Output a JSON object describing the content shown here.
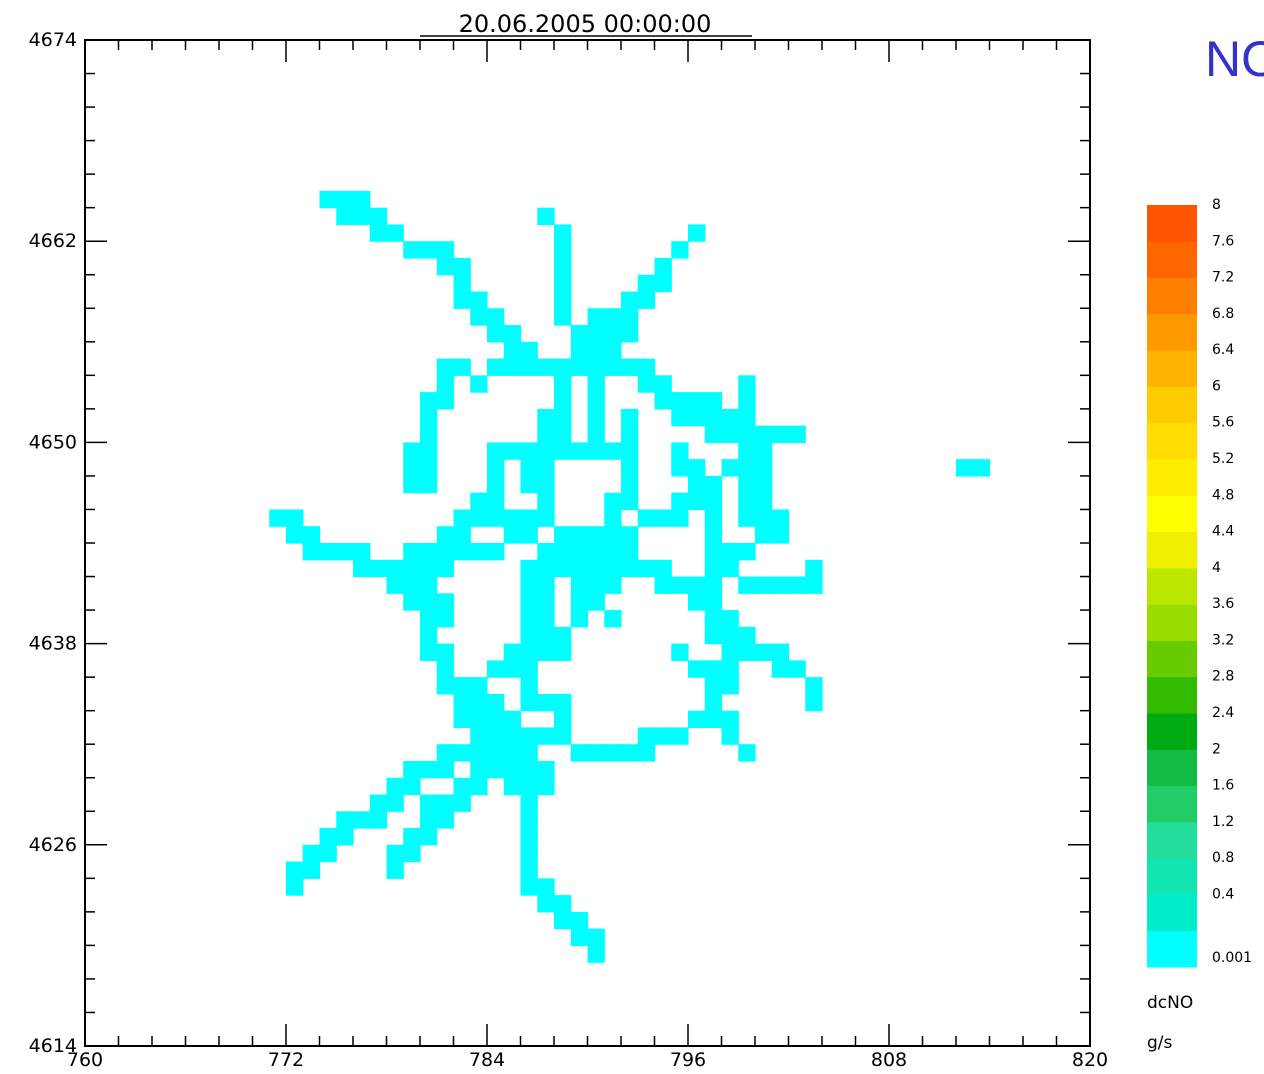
{
  "heading": "NO",
  "chart_data": {
    "type": "heatmap",
    "title": "20.06.2005   00:00:00",
    "xlim": [
      760,
      820
    ],
    "ylim": [
      4614,
      4674
    ],
    "x_ticks": [
      760,
      772,
      784,
      796,
      808,
      820
    ],
    "y_ticks": [
      4614,
      4626,
      4638,
      4650,
      4662,
      4674
    ],
    "colorbar": {
      "variable": "dcNO",
      "unit": "g/s",
      "levels": [
        "0.001",
        "0.4",
        "0.8",
        "1.2",
        "1.6",
        "2",
        "2.4",
        "2.8",
        "3.2",
        "3.6",
        "4",
        "4.4",
        "4.8",
        "5.2",
        "5.6",
        "6",
        "6.4",
        "6.8",
        "7.2",
        "7.6",
        "8"
      ],
      "colors": [
        "#00ffff",
        "#00eecc",
        "#11e6b0",
        "#22dd99",
        "#22cc66",
        "#11bb44",
        "#00aa11",
        "#33bb00",
        "#66cc00",
        "#99dd00",
        "#bbe600",
        "#eef000",
        "#ffff00",
        "#ffee00",
        "#ffdd00",
        "#ffcc00",
        "#ffb300",
        "#ff9900",
        "#ff8000",
        "#ff6600",
        "#ff5500"
      ]
    },
    "grid_resolution_km": 1,
    "cell_color": "#00ffff",
    "cell_value_class": "0.001",
    "cells": [
      [
        774,
        4664
      ],
      [
        775,
        4664
      ],
      [
        776,
        4664
      ],
      [
        775,
        4663
      ],
      [
        776,
        4663
      ],
      [
        777,
        4663
      ],
      [
        787,
        4663
      ],
      [
        777,
        4662
      ],
      [
        778,
        4662
      ],
      [
        788,
        4662
      ],
      [
        796,
        4662
      ],
      [
        779,
        4661
      ],
      [
        780,
        4661
      ],
      [
        781,
        4661
      ],
      [
        788,
        4661
      ],
      [
        795,
        4661
      ],
      [
        781,
        4660
      ],
      [
        782,
        4660
      ],
      [
        788,
        4660
      ],
      [
        794,
        4660
      ],
      [
        782,
        4659
      ],
      [
        788,
        4659
      ],
      [
        793,
        4659
      ],
      [
        794,
        4659
      ],
      [
        782,
        4658
      ],
      [
        783,
        4658
      ],
      [
        788,
        4658
      ],
      [
        792,
        4658
      ],
      [
        793,
        4658
      ],
      [
        783,
        4657
      ],
      [
        784,
        4657
      ],
      [
        788,
        4657
      ],
      [
        790,
        4657
      ],
      [
        791,
        4657
      ],
      [
        792,
        4657
      ],
      [
        784,
        4656
      ],
      [
        785,
        4656
      ],
      [
        789,
        4656
      ],
      [
        790,
        4656
      ],
      [
        791,
        4656
      ],
      [
        792,
        4656
      ],
      [
        785,
        4655
      ],
      [
        786,
        4655
      ],
      [
        789,
        4655
      ],
      [
        790,
        4655
      ],
      [
        791,
        4655
      ],
      [
        781,
        4654
      ],
      [
        782,
        4654
      ],
      [
        784,
        4654
      ],
      [
        785,
        4654
      ],
      [
        786,
        4654
      ],
      [
        787,
        4654
      ],
      [
        788,
        4654
      ],
      [
        789,
        4654
      ],
      [
        790,
        4654
      ],
      [
        791,
        4654
      ],
      [
        792,
        4654
      ],
      [
        793,
        4654
      ],
      [
        781,
        4653
      ],
      [
        783,
        4653
      ],
      [
        788,
        4653
      ],
      [
        790,
        4653
      ],
      [
        793,
        4653
      ],
      [
        794,
        4653
      ],
      [
        799,
        4653
      ],
      [
        780,
        4652
      ],
      [
        781,
        4652
      ],
      [
        788,
        4652
      ],
      [
        790,
        4652
      ],
      [
        794,
        4652
      ],
      [
        795,
        4652
      ],
      [
        796,
        4652
      ],
      [
        797,
        4652
      ],
      [
        799,
        4652
      ],
      [
        780,
        4651
      ],
      [
        787,
        4651
      ],
      [
        788,
        4651
      ],
      [
        790,
        4651
      ],
      [
        792,
        4651
      ],
      [
        795,
        4651
      ],
      [
        796,
        4651
      ],
      [
        797,
        4651
      ],
      [
        798,
        4651
      ],
      [
        799,
        4651
      ],
      [
        780,
        4650
      ],
      [
        787,
        4650
      ],
      [
        788,
        4650
      ],
      [
        790,
        4650
      ],
      [
        792,
        4650
      ],
      [
        797,
        4650
      ],
      [
        798,
        4650
      ],
      [
        799,
        4650
      ],
      [
        800,
        4650
      ],
      [
        801,
        4650
      ],
      [
        802,
        4650
      ],
      [
        779,
        4649
      ],
      [
        780,
        4649
      ],
      [
        784,
        4649
      ],
      [
        785,
        4649
      ],
      [
        786,
        4649
      ],
      [
        787,
        4649
      ],
      [
        788,
        4649
      ],
      [
        789,
        4649
      ],
      [
        790,
        4649
      ],
      [
        791,
        4649
      ],
      [
        792,
        4649
      ],
      [
        795,
        4649
      ],
      [
        799,
        4649
      ],
      [
        800,
        4649
      ],
      [
        779,
        4648
      ],
      [
        780,
        4648
      ],
      [
        784,
        4648
      ],
      [
        786,
        4648
      ],
      [
        787,
        4648
      ],
      [
        792,
        4648
      ],
      [
        795,
        4648
      ],
      [
        796,
        4648
      ],
      [
        798,
        4648
      ],
      [
        799,
        4648
      ],
      [
        800,
        4648
      ],
      [
        812,
        4648
      ],
      [
        813,
        4648
      ],
      [
        779,
        4647
      ],
      [
        780,
        4647
      ],
      [
        784,
        4647
      ],
      [
        786,
        4647
      ],
      [
        787,
        4647
      ],
      [
        792,
        4647
      ],
      [
        796,
        4647
      ],
      [
        797,
        4647
      ],
      [
        799,
        4647
      ],
      [
        800,
        4647
      ],
      [
        783,
        4646
      ],
      [
        784,
        4646
      ],
      [
        787,
        4646
      ],
      [
        791,
        4646
      ],
      [
        792,
        4646
      ],
      [
        795,
        4646
      ],
      [
        796,
        4646
      ],
      [
        797,
        4646
      ],
      [
        799,
        4646
      ],
      [
        800,
        4646
      ],
      [
        771,
        4645
      ],
      [
        772,
        4645
      ],
      [
        782,
        4645
      ],
      [
        783,
        4645
      ],
      [
        784,
        4645
      ],
      [
        785,
        4645
      ],
      [
        786,
        4645
      ],
      [
        787,
        4645
      ],
      [
        791,
        4645
      ],
      [
        793,
        4645
      ],
      [
        794,
        4645
      ],
      [
        795,
        4645
      ],
      [
        797,
        4645
      ],
      [
        799,
        4645
      ],
      [
        800,
        4645
      ],
      [
        801,
        4645
      ],
      [
        772,
        4644
      ],
      [
        773,
        4644
      ],
      [
        781,
        4644
      ],
      [
        782,
        4644
      ],
      [
        785,
        4644
      ],
      [
        786,
        4644
      ],
      [
        788,
        4644
      ],
      [
        789,
        4644
      ],
      [
        790,
        4644
      ],
      [
        791,
        4644
      ],
      [
        792,
        4644
      ],
      [
        797,
        4644
      ],
      [
        800,
        4644
      ],
      [
        801,
        4644
      ],
      [
        773,
        4643
      ],
      [
        774,
        4643
      ],
      [
        775,
        4643
      ],
      [
        776,
        4643
      ],
      [
        779,
        4643
      ],
      [
        780,
        4643
      ],
      [
        781,
        4643
      ],
      [
        782,
        4643
      ],
      [
        783,
        4643
      ],
      [
        784,
        4643
      ],
      [
        787,
        4643
      ],
      [
        788,
        4643
      ],
      [
        789,
        4643
      ],
      [
        790,
        4643
      ],
      [
        791,
        4643
      ],
      [
        792,
        4643
      ],
      [
        797,
        4643
      ],
      [
        798,
        4643
      ],
      [
        799,
        4643
      ],
      [
        776,
        4642
      ],
      [
        777,
        4642
      ],
      [
        778,
        4642
      ],
      [
        779,
        4642
      ],
      [
        780,
        4642
      ],
      [
        781,
        4642
      ],
      [
        786,
        4642
      ],
      [
        787,
        4642
      ],
      [
        788,
        4642
      ],
      [
        789,
        4642
      ],
      [
        790,
        4642
      ],
      [
        791,
        4642
      ],
      [
        792,
        4642
      ],
      [
        793,
        4642
      ],
      [
        794,
        4642
      ],
      [
        797,
        4642
      ],
      [
        798,
        4642
      ],
      [
        803,
        4642
      ],
      [
        778,
        4641
      ],
      [
        779,
        4641
      ],
      [
        780,
        4641
      ],
      [
        786,
        4641
      ],
      [
        787,
        4641
      ],
      [
        789,
        4641
      ],
      [
        790,
        4641
      ],
      [
        791,
        4641
      ],
      [
        794,
        4641
      ],
      [
        795,
        4641
      ],
      [
        796,
        4641
      ],
      [
        797,
        4641
      ],
      [
        799,
        4641
      ],
      [
        800,
        4641
      ],
      [
        801,
        4641
      ],
      [
        802,
        4641
      ],
      [
        803,
        4641
      ],
      [
        779,
        4640
      ],
      [
        780,
        4640
      ],
      [
        781,
        4640
      ],
      [
        786,
        4640
      ],
      [
        787,
        4640
      ],
      [
        789,
        4640
      ],
      [
        790,
        4640
      ],
      [
        796,
        4640
      ],
      [
        797,
        4640
      ],
      [
        780,
        4639
      ],
      [
        781,
        4639
      ],
      [
        786,
        4639
      ],
      [
        787,
        4639
      ],
      [
        789,
        4639
      ],
      [
        791,
        4639
      ],
      [
        797,
        4639
      ],
      [
        798,
        4639
      ],
      [
        780,
        4638
      ],
      [
        786,
        4638
      ],
      [
        787,
        4638
      ],
      [
        788,
        4638
      ],
      [
        797,
        4638
      ],
      [
        798,
        4638
      ],
      [
        799,
        4638
      ],
      [
        780,
        4637
      ],
      [
        781,
        4637
      ],
      [
        785,
        4637
      ],
      [
        786,
        4637
      ],
      [
        787,
        4637
      ],
      [
        788,
        4637
      ],
      [
        795,
        4637
      ],
      [
        798,
        4637
      ],
      [
        799,
        4637
      ],
      [
        800,
        4637
      ],
      [
        801,
        4637
      ],
      [
        781,
        4636
      ],
      [
        784,
        4636
      ],
      [
        785,
        4636
      ],
      [
        786,
        4636
      ],
      [
        796,
        4636
      ],
      [
        797,
        4636
      ],
      [
        798,
        4636
      ],
      [
        801,
        4636
      ],
      [
        802,
        4636
      ],
      [
        781,
        4635
      ],
      [
        782,
        4635
      ],
      [
        783,
        4635
      ],
      [
        786,
        4635
      ],
      [
        797,
        4635
      ],
      [
        798,
        4635
      ],
      [
        803,
        4635
      ],
      [
        782,
        4634
      ],
      [
        783,
        4634
      ],
      [
        784,
        4634
      ],
      [
        786,
        4634
      ],
      [
        787,
        4634
      ],
      [
        788,
        4634
      ],
      [
        797,
        4634
      ],
      [
        803,
        4634
      ],
      [
        782,
        4633
      ],
      [
        783,
        4633
      ],
      [
        784,
        4633
      ],
      [
        785,
        4633
      ],
      [
        788,
        4633
      ],
      [
        796,
        4633
      ],
      [
        797,
        4633
      ],
      [
        798,
        4633
      ],
      [
        783,
        4632
      ],
      [
        784,
        4632
      ],
      [
        785,
        4632
      ],
      [
        786,
        4632
      ],
      [
        787,
        4632
      ],
      [
        788,
        4632
      ],
      [
        793,
        4632
      ],
      [
        794,
        4632
      ],
      [
        795,
        4632
      ],
      [
        798,
        4632
      ],
      [
        781,
        4631
      ],
      [
        782,
        4631
      ],
      [
        783,
        4631
      ],
      [
        784,
        4631
      ],
      [
        785,
        4631
      ],
      [
        786,
        4631
      ],
      [
        789,
        4631
      ],
      [
        790,
        4631
      ],
      [
        791,
        4631
      ],
      [
        792,
        4631
      ],
      [
        793,
        4631
      ],
      [
        799,
        4631
      ],
      [
        779,
        4630
      ],
      [
        780,
        4630
      ],
      [
        781,
        4630
      ],
      [
        783,
        4630
      ],
      [
        784,
        4630
      ],
      [
        785,
        4630
      ],
      [
        786,
        4630
      ],
      [
        787,
        4630
      ],
      [
        778,
        4629
      ],
      [
        779,
        4629
      ],
      [
        782,
        4629
      ],
      [
        783,
        4629
      ],
      [
        785,
        4629
      ],
      [
        786,
        4629
      ],
      [
        787,
        4629
      ],
      [
        777,
        4628
      ],
      [
        778,
        4628
      ],
      [
        780,
        4628
      ],
      [
        781,
        4628
      ],
      [
        782,
        4628
      ],
      [
        786,
        4628
      ],
      [
        775,
        4627
      ],
      [
        776,
        4627
      ],
      [
        777,
        4627
      ],
      [
        780,
        4627
      ],
      [
        781,
        4627
      ],
      [
        786,
        4627
      ],
      [
        774,
        4626
      ],
      [
        775,
        4626
      ],
      [
        779,
        4626
      ],
      [
        780,
        4626
      ],
      [
        786,
        4626
      ],
      [
        773,
        4625
      ],
      [
        774,
        4625
      ],
      [
        778,
        4625
      ],
      [
        779,
        4625
      ],
      [
        786,
        4625
      ],
      [
        772,
        4624
      ],
      [
        773,
        4624
      ],
      [
        778,
        4624
      ],
      [
        786,
        4624
      ],
      [
        772,
        4623
      ],
      [
        786,
        4623
      ],
      [
        787,
        4623
      ],
      [
        787,
        4622
      ],
      [
        788,
        4622
      ],
      [
        788,
        4621
      ],
      [
        789,
        4621
      ],
      [
        789,
        4620
      ],
      [
        790,
        4620
      ],
      [
        790,
        4619
      ]
    ]
  }
}
